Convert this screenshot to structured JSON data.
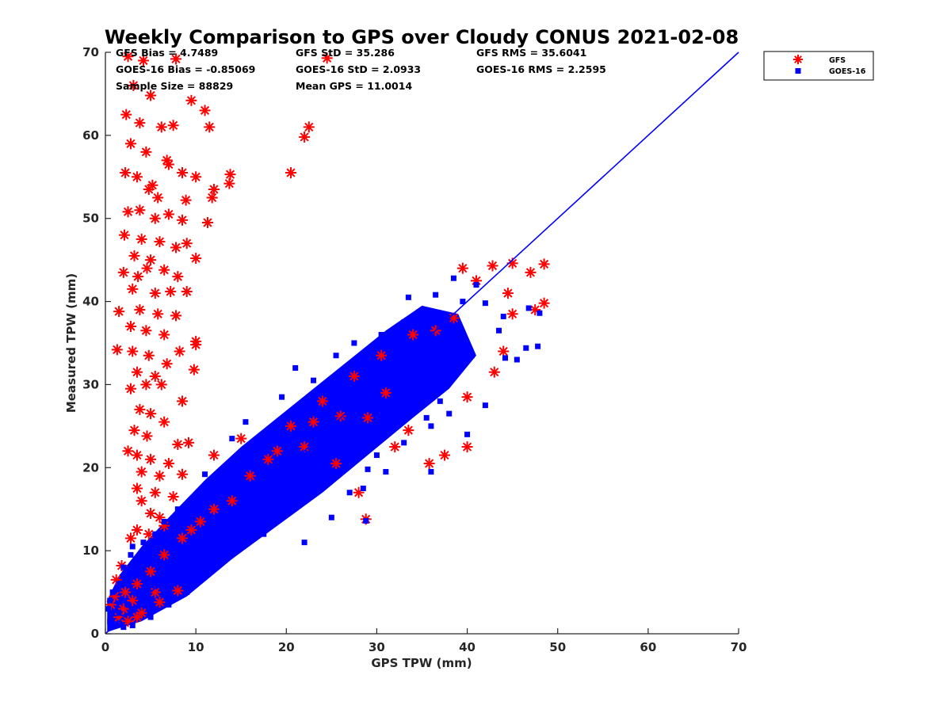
{
  "chart_data": {
    "type": "scatter",
    "title": "Weekly Comparison to GPS over Cloudy CONUS 2021-02-08",
    "xlabel": "GPS TPW (mm)",
    "ylabel": "Measured TPW (mm)",
    "xlim": [
      0,
      70
    ],
    "ylim": [
      0,
      70
    ],
    "xticks": [
      "0",
      "10",
      "20",
      "30",
      "40",
      "50",
      "60",
      "70"
    ],
    "yticks": [
      "0",
      "10",
      "20",
      "30",
      "40",
      "50",
      "60",
      "70"
    ],
    "grid": false,
    "legend_position": "outside-top-right",
    "stats": [
      "GFS Bias = 4.7489",
      "GFS StD = 35.286",
      "GFS RMS = 35.6041",
      "GOES-16 Bias = -0.85069",
      "GOES-16 StD = 2.0933",
      "GOES-16 RMS = 2.2595",
      "Sample Size = 88829",
      "Mean GPS = 11.0014"
    ],
    "reference_line": {
      "x": [
        0,
        70
      ],
      "y": [
        0,
        70
      ],
      "color": "#0000ff"
    },
    "series": [
      {
        "name": "GFS",
        "marker": "asterisk",
        "color": "#ff0000",
        "points": [
          [
            2.5,
            69.5
          ],
          [
            4.2,
            69.0
          ],
          [
            7.8,
            69.2
          ],
          [
            24.5,
            69.3
          ],
          [
            3.1,
            66.0
          ],
          [
            5.0,
            64.8
          ],
          [
            9.5,
            64.2
          ],
          [
            11.0,
            63.0
          ],
          [
            2.3,
            62.5
          ],
          [
            3.8,
            61.5
          ],
          [
            6.2,
            61.0
          ],
          [
            7.5,
            61.2
          ],
          [
            11.5,
            61.0
          ],
          [
            22.5,
            61.0
          ],
          [
            22.0,
            59.8
          ],
          [
            2.8,
            59.0
          ],
          [
            4.5,
            58.0
          ],
          [
            6.8,
            57.0
          ],
          [
            7.0,
            56.5
          ],
          [
            2.2,
            55.5
          ],
          [
            3.5,
            55.0
          ],
          [
            5.2,
            54.0
          ],
          [
            8.5,
            55.5
          ],
          [
            10.0,
            55.0
          ],
          [
            13.8,
            55.3
          ],
          [
            13.7,
            54.2
          ],
          [
            20.5,
            55.5
          ],
          [
            4.8,
            53.5
          ],
          [
            5.8,
            52.5
          ],
          [
            8.9,
            52.2
          ],
          [
            12.0,
            53.5
          ],
          [
            11.8,
            52.5
          ],
          [
            2.5,
            50.8
          ],
          [
            3.8,
            51.0
          ],
          [
            5.5,
            50.0
          ],
          [
            7.0,
            50.5
          ],
          [
            8.5,
            49.8
          ],
          [
            11.3,
            49.5
          ],
          [
            2.1,
            48.0
          ],
          [
            4.0,
            47.5
          ],
          [
            6.0,
            47.2
          ],
          [
            7.8,
            46.5
          ],
          [
            9.0,
            47.0
          ],
          [
            3.2,
            45.5
          ],
          [
            5.0,
            45.0
          ],
          [
            10.0,
            45.2
          ],
          [
            2.0,
            43.5
          ],
          [
            3.6,
            43.0
          ],
          [
            4.6,
            44.0
          ],
          [
            6.5,
            43.8
          ],
          [
            8.0,
            43.0
          ],
          [
            3.0,
            41.5
          ],
          [
            5.5,
            41.0
          ],
          [
            7.2,
            41.2
          ],
          [
            9.0,
            41.2
          ],
          [
            1.5,
            38.8
          ],
          [
            3.8,
            39.0
          ],
          [
            5.8,
            38.5
          ],
          [
            7.8,
            38.3
          ],
          [
            2.8,
            37.0
          ],
          [
            4.5,
            36.5
          ],
          [
            6.5,
            36.0
          ],
          [
            10.0,
            35.2
          ],
          [
            1.3,
            34.2
          ],
          [
            3.0,
            34.0
          ],
          [
            4.8,
            33.5
          ],
          [
            8.2,
            34.0
          ],
          [
            10.0,
            34.8
          ],
          [
            3.5,
            31.5
          ],
          [
            5.5,
            31.0
          ],
          [
            6.8,
            32.5
          ],
          [
            9.8,
            31.8
          ],
          [
            2.8,
            29.5
          ],
          [
            4.5,
            30.0
          ],
          [
            6.2,
            30.0
          ],
          [
            8.5,
            28.0
          ],
          [
            3.8,
            27.0
          ],
          [
            5.0,
            26.5
          ],
          [
            6.5,
            25.5
          ],
          [
            3.2,
            24.5
          ],
          [
            4.6,
            23.8
          ],
          [
            8.0,
            22.8
          ],
          [
            9.2,
            23.0
          ],
          [
            2.5,
            22.0
          ],
          [
            3.5,
            21.5
          ],
          [
            5.0,
            21.0
          ],
          [
            7.0,
            20.5
          ],
          [
            4.0,
            19.5
          ],
          [
            6.0,
            19.0
          ],
          [
            8.5,
            19.2
          ],
          [
            3.5,
            17.5
          ],
          [
            5.5,
            17.0
          ],
          [
            7.5,
            16.5
          ],
          [
            4.0,
            16.0
          ],
          [
            5.0,
            14.5
          ],
          [
            6.0,
            14.0
          ],
          [
            3.5,
            12.5
          ],
          [
            4.8,
            12.0
          ],
          [
            6.5,
            13.0
          ],
          [
            2.8,
            11.5
          ],
          [
            12.0,
            21.5
          ],
          [
            15.0,
            23.5
          ],
          [
            20.5,
            25.0
          ],
          [
            26.0,
            26.2
          ],
          [
            22.0,
            22.5
          ],
          [
            25.5,
            20.5
          ],
          [
            28.0,
            17.0
          ],
          [
            28.8,
            13.8
          ],
          [
            32.0,
            22.5
          ],
          [
            33.5,
            24.5
          ],
          [
            35.8,
            20.5
          ],
          [
            37.5,
            21.5
          ],
          [
            40.0,
            22.5
          ],
          [
            40.0,
            28.5
          ],
          [
            43.0,
            31.5
          ],
          [
            44.0,
            34.0
          ],
          [
            45.0,
            38.5
          ],
          [
            44.5,
            41.0
          ],
          [
            47.5,
            39.0
          ],
          [
            48.5,
            39.8
          ],
          [
            47.0,
            43.5
          ],
          [
            48.5,
            44.5
          ],
          [
            45.0,
            44.6
          ],
          [
            42.8,
            44.3
          ],
          [
            39.5,
            44.0
          ],
          [
            41.0,
            42.5
          ],
          [
            38.5,
            38.0
          ],
          [
            36.5,
            36.5
          ],
          [
            34.0,
            36.0
          ],
          [
            30.5,
            33.5
          ],
          [
            27.5,
            31.0
          ],
          [
            31.0,
            29.0
          ],
          [
            29.0,
            26.0
          ],
          [
            24.0,
            28.0
          ],
          [
            23.0,
            25.5
          ],
          [
            18.0,
            21.0
          ],
          [
            14.0,
            16.0
          ],
          [
            10.5,
            13.5
          ],
          [
            8.5,
            11.5
          ],
          [
            6.5,
            9.5
          ],
          [
            5.0,
            7.5
          ],
          [
            3.5,
            6.0
          ],
          [
            2.2,
            5.0
          ],
          [
            1.8,
            8.2
          ],
          [
            1.0,
            4.5
          ],
          [
            0.6,
            3.5
          ],
          [
            1.5,
            2.0
          ],
          [
            2.5,
            1.5
          ],
          [
            4.0,
            2.5
          ],
          [
            6.0,
            3.8
          ],
          [
            8.0,
            5.2
          ],
          [
            1.2,
            6.5
          ],
          [
            2.0,
            3.0
          ],
          [
            3.0,
            4.0
          ],
          [
            5.5,
            5.0
          ],
          [
            3.5,
            2.0
          ],
          [
            16.0,
            19.0
          ],
          [
            19.0,
            22.0
          ],
          [
            12.0,
            15.0
          ],
          [
            9.5,
            12.5
          ]
        ]
      },
      {
        "name": "GOES-16",
        "marker": "square",
        "color": "#0000ff",
        "points": [
          [
            38.5,
            42.8
          ],
          [
            41.0,
            42.0
          ],
          [
            33.5,
            40.5
          ],
          [
            36.5,
            40.8
          ],
          [
            39.5,
            40.0
          ],
          [
            42.0,
            39.8
          ],
          [
            46.8,
            39.2
          ],
          [
            48.0,
            38.6
          ],
          [
            44.0,
            38.2
          ],
          [
            47.8,
            34.6
          ],
          [
            46.5,
            34.4
          ],
          [
            44.2,
            33.2
          ],
          [
            40.0,
            24.0
          ],
          [
            42.0,
            27.5
          ],
          [
            37.0,
            28.0
          ],
          [
            38.0,
            26.5
          ],
          [
            35.5,
            26.0
          ],
          [
            36.0,
            25.0
          ],
          [
            36.0,
            19.5
          ],
          [
            33.0,
            23.0
          ],
          [
            31.0,
            19.5
          ],
          [
            29.0,
            19.8
          ],
          [
            30.0,
            21.5
          ],
          [
            28.5,
            17.5
          ],
          [
            28.8,
            13.6
          ],
          [
            27.0,
            17.0
          ],
          [
            25.0,
            14.0
          ],
          [
            22.0,
            11.0
          ],
          [
            17.5,
            12.0
          ],
          [
            16.0,
            11.5
          ],
          [
            14.5,
            11.0
          ],
          [
            19.0,
            15.0
          ],
          [
            20.0,
            16.8
          ],
          [
            30.5,
            36.0
          ],
          [
            31.5,
            35.5
          ],
          [
            28.0,
            33.0
          ],
          [
            27.5,
            35.0
          ],
          [
            25.5,
            33.5
          ],
          [
            21.0,
            32.0
          ],
          [
            19.5,
            28.5
          ],
          [
            15.5,
            25.5
          ],
          [
            14.0,
            23.5
          ],
          [
            11.0,
            19.2
          ],
          [
            9.5,
            16.0
          ],
          [
            8.0,
            15.0
          ],
          [
            6.5,
            13.5
          ],
          [
            5.5,
            12.0
          ],
          [
            4.2,
            11.0
          ],
          [
            3.0,
            10.5
          ],
          [
            2.8,
            9.5
          ],
          [
            2.0,
            8.0
          ],
          [
            1.5,
            6.0
          ],
          [
            0.8,
            5.0
          ],
          [
            0.5,
            4.0
          ],
          [
            0.3,
            3.0
          ],
          [
            0.5,
            1.5
          ],
          [
            1.0,
            1.0
          ],
          [
            2.0,
            0.8
          ],
          [
            3.0,
            1.0
          ],
          [
            5.0,
            2.0
          ],
          [
            7.0,
            3.5
          ],
          [
            9.0,
            5.0
          ],
          [
            11.0,
            7.0
          ],
          [
            13.0,
            9.0
          ],
          [
            1.5,
            2.5
          ],
          [
            2.5,
            3.5
          ],
          [
            3.5,
            5.0
          ],
          [
            4.5,
            6.5
          ],
          [
            6.0,
            8.0
          ],
          [
            33.0,
            37.5
          ],
          [
            35.0,
            38.5
          ],
          [
            43.5,
            36.5
          ],
          [
            45.5,
            33.0
          ],
          [
            38.0,
            35.0
          ],
          [
            40.5,
            33.5
          ],
          [
            23.0,
            30.5
          ],
          [
            26.0,
            30.0
          ],
          [
            24.5,
            20.5
          ],
          [
            21.5,
            17.5
          ],
          [
            18.0,
            14.0
          ]
        ]
      }
    ]
  }
}
